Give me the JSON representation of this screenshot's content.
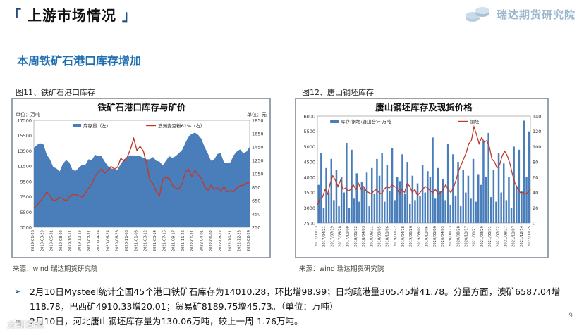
{
  "header": {
    "title": "上游市场情况",
    "bracket_open": "「",
    "bracket_close": "」",
    "logo_text": "瑞达期货研究院"
  },
  "section_title": "本周铁矿石港口库存增加",
  "figures": {
    "fig11_caption": "图11、铁矿石港口库存",
    "fig12_caption": "图12、唐山钢坯库存",
    "source1": "来源：wind  瑞达期货研究院",
    "source2": "来源：wind  瑞达期货研究院"
  },
  "colors": {
    "bar_blue": "#4a7ebb",
    "line_red": "#c0392b",
    "title_blue": "#1f6fb0",
    "navy": "#1f4e79"
  },
  "chart_data": [
    {
      "type": "area",
      "title": "铁矿石港口库存与矿价",
      "left_unit": "单位：万吨",
      "right_unit": "单位：元",
      "legend": [
        "库存量（左）",
        "澳洲麦克粉61%（右）"
      ],
      "y_left_ticks": [
        "3500",
        "5500",
        "7500",
        "9500",
        "11500",
        "13500",
        "15500",
        "17500"
      ],
      "y_right_ticks": [
        "250",
        "450",
        "650",
        "850",
        "1050",
        "1250",
        "1450",
        "1650",
        "1850"
      ],
      "ylim_left": [
        3500,
        17500
      ],
      "ylim_right": [
        250,
        1850
      ],
      "x_ticks": [
        "2019-01-25",
        "2019-03-29",
        "2019-05-31",
        "2019-08-02",
        "2019-10-11",
        "2019-12-13",
        "2020-02-21",
        "2020-04-24",
        "2020-06-24",
        "2020-08-28",
        "2020-11-06",
        "2021-01-08",
        "2021-03-12",
        "2021-05-14",
        "2021-07-16",
        "2021-09-17",
        "2021-11-26",
        "2022-01-21",
        "2022-04-01",
        "2022-06-02",
        "2022-08-12",
        "2022-10-21",
        "2022-12-23",
        "2023-02-24"
      ],
      "series": [
        {
          "name": "库存量（左）",
          "values": [
            13900,
            14300,
            14500,
            14350,
            13000,
            12400,
            11400,
            11200,
            10800,
            11800,
            12300,
            12000,
            11000,
            10900,
            11300,
            11700,
            11700,
            12400,
            12300,
            13000,
            12800,
            12800,
            12100,
            11500,
            11200,
            11100,
            11050,
            11800,
            12400,
            12700,
            12900,
            12900,
            12800,
            12800,
            12600,
            12400,
            12400,
            12700,
            12200,
            12100,
            11600,
            12200,
            12800,
            12600,
            12800,
            13200,
            13600,
            14500,
            15400,
            15700,
            15900,
            15600,
            15100,
            14000,
            13200,
            12200,
            12400,
            13100,
            13200,
            12000,
            11900,
            12000,
            12900,
            13400,
            13700,
            13200,
            13400,
            14010
          ]
        },
        {
          "name": "澳洲麦克粉61%（右）",
          "values": [
            540,
            580,
            640,
            700,
            780,
            720,
            650,
            660,
            700,
            680,
            640,
            700,
            740,
            740,
            720,
            700,
            760,
            840,
            900,
            1010,
            1080,
            1120,
            1060,
            1100,
            1160,
            1120,
            1150,
            1280,
            1240,
            1300,
            1420,
            1580,
            1400,
            1460,
            1390,
            1200,
            960,
            900,
            780,
            720,
            960,
            1000,
            980,
            880,
            840,
            820,
            900,
            1070,
            1120,
            1010,
            1100,
            1040,
            980,
            860,
            800,
            880,
            820,
            840,
            790,
            860,
            780,
            800,
            780,
            840,
            870,
            880,
            910,
            920
          ]
        }
      ]
    },
    {
      "type": "bar",
      "title": "唐山钢坯库存及现货价格",
      "legend": [
        "库存:钢坯:唐山合计  万吨",
        "钢坯"
      ],
      "y_left_ticks": [
        "2500",
        "3000",
        "3500",
        "4000",
        "4500",
        "5000",
        "5500",
        "6000"
      ],
      "y_right_ticks": [
        "0",
        "20",
        "40",
        "60",
        "80",
        "100",
        "120",
        "140"
      ],
      "ylim_left": [
        2500,
        6000
      ],
      "ylim_right": [
        0,
        140
      ],
      "x_ticks": [
        "2017/01/13",
        "2017/04/21",
        "2017/07/19",
        "2017/09/28",
        "2017/11/09",
        "2018/01/12",
        "2018/04/03",
        "2018/06/21",
        "2018/09/05",
        "2018/11/06",
        "2019/01/22",
        "2019/04/18",
        "2019/06/26",
        "2019/09/02",
        "2019/11/06",
        "2020/01/06",
        "2020/04/03",
        "2020/06/23",
        "2020/08/28",
        "2020/11/17",
        "2021/01/21",
        "2021/03/29",
        "2021/05/31",
        "2021/07/12",
        "2021/08/27",
        "2021/11/07",
        "2021/12/14",
        "2022/01/25"
      ],
      "series": [
        {
          "name": "库存:钢坯:唐山合计  万吨",
          "values": [
            50,
            92,
            20,
            72,
            40,
            84,
            30,
            70,
            22,
            60,
            40,
            105,
            20,
            96,
            32,
            65,
            28,
            54,
            46,
            66,
            22,
            72,
            38,
            84,
            62,
            92,
            28,
            76,
            42,
            98,
            30,
            60,
            55,
            90,
            38,
            80,
            25,
            62,
            30,
            52,
            35,
            76,
            40,
            68,
            60,
            112,
            32,
            72,
            42,
            58,
            30,
            104,
            24,
            90,
            36,
            80,
            22,
            70,
            40,
            62,
            32,
            84,
            28,
            64,
            50,
            108,
            60,
            118,
            34,
            70,
            28,
            92,
            40,
            78,
            30,
            60,
            20,
            100,
            48,
            96,
            42,
            134,
            60,
            120
          ]
        },
        {
          "name": "钢坯",
          "values": [
            3100,
            3300,
            3350,
            3600,
            3450,
            3800,
            4050,
            3900,
            3700,
            3900,
            3600,
            3650,
            3550,
            3600,
            3750,
            3600,
            3800,
            3600,
            3700,
            3550,
            3500,
            3450,
            3550,
            3600,
            3500,
            3450,
            3600,
            3700,
            3650,
            3750,
            3700,
            3650,
            3450,
            3600,
            3500,
            3800,
            3700,
            3500,
            3600,
            3400,
            3500,
            3600,
            3700,
            3650,
            3550,
            3500,
            3600,
            3450,
            3500,
            3600,
            3750,
            3600,
            3500,
            3650,
            3900,
            4200,
            4400,
            4600,
            4800,
            5100,
            5200,
            5650,
            5400,
            5100,
            5300,
            5150,
            5200,
            5000,
            4600,
            4500,
            4300,
            4400,
            4700,
            4850,
            4700,
            4450,
            4100,
            3800,
            3650,
            3500,
            3500,
            3450,
            3500,
            3600
          ]
        }
      ]
    }
  ],
  "bullets": [
    {
      "line1": "2月10日Mysteel统计全国45个港口铁矿石库存为14010.28，环比增98.99；日均疏港量305.45增41.78。分量方面，澳矿6587.04增",
      "line2": "118.78，巴西矿4910.33增20.01；贸易矿8189.75增45.73。（单位：万吨）"
    },
    {
      "line1": "2月10日，河北唐山钢坯库存量为130.06万吨，较上一周-1.76万吨。"
    }
  ],
  "page_number": "9",
  "watermark_text": "众期资讯"
}
